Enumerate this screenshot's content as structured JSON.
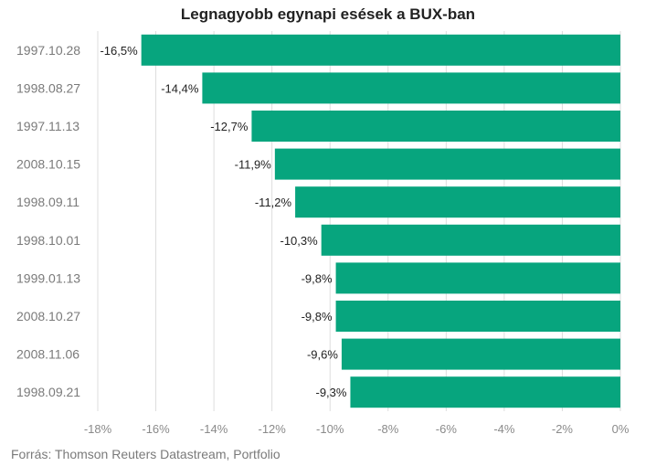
{
  "chart_data": {
    "type": "bar",
    "orientation": "horizontal",
    "title": "Legnagyobb egynapi esések a BUX-ban",
    "categories": [
      "1997.10.28",
      "1998.08.27",
      "1997.11.13",
      "2008.10.15",
      "1998.09.11",
      "1998.10.01",
      "1999.01.13",
      "2008.10.27",
      "2008.11.06",
      "1998.09.21"
    ],
    "values": [
      -16.5,
      -14.4,
      -12.7,
      -11.9,
      -11.2,
      -10.3,
      -9.8,
      -9.8,
      -9.6,
      -9.3
    ],
    "data_labels": [
      "-16,5%",
      "-14,4%",
      "-12,7%",
      "-11,9%",
      "-11,2%",
      "-10,3%",
      "-9,8%",
      "-9,8%",
      "-9,6%",
      "-9,3%"
    ],
    "xlim": [
      -18,
      0
    ],
    "x_ticks": [
      -18,
      -16,
      -14,
      -12,
      -10,
      -8,
      -6,
      -4,
      -2,
      0
    ],
    "x_tick_labels": [
      "-18%",
      "-16%",
      "-14%",
      "-12%",
      "-10%",
      "-8%",
      "-6%",
      "-4%",
      "-2%",
      "0%"
    ],
    "grid": "vertical",
    "bar_color": "#07a57e",
    "grid_color": "#dddddd"
  },
  "source": "Forrás: Thomson Reuters Datastream, Portfolio"
}
